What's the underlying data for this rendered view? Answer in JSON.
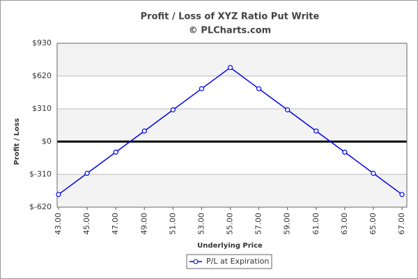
{
  "chart_data": {
    "type": "line",
    "title": "Profit / Loss of XYZ Ratio Put Write",
    "subtitle": "© PLCharts.com",
    "x_label": "Underlying Price",
    "y_label": "Profit / Loss",
    "x": [
      43,
      45,
      47,
      49,
      51,
      53,
      55,
      57,
      59,
      61,
      63,
      65,
      67
    ],
    "series": [
      {
        "name": "P/L at Expiration",
        "color": "#0000ee",
        "values": [
          -500,
          -300,
          -100,
          100,
          300,
          500,
          700,
          500,
          300,
          100,
          -100,
          -300,
          -500
        ]
      }
    ],
    "xlim": [
      43,
      67
    ],
    "xticks": [
      {
        "value": 43,
        "label": "43.00"
      },
      {
        "value": 45,
        "label": "45.00"
      },
      {
        "value": 47,
        "label": "47.00"
      },
      {
        "value": 49,
        "label": "49.00"
      },
      {
        "value": 51,
        "label": "51.00"
      },
      {
        "value": 53,
        "label": "53.00"
      },
      {
        "value": 55,
        "label": "55.00"
      },
      {
        "value": 57,
        "label": "57.00"
      },
      {
        "value": 59,
        "label": "59.00"
      },
      {
        "value": 61,
        "label": "61.00"
      },
      {
        "value": 63,
        "label": "63.00"
      },
      {
        "value": 65,
        "label": "65.00"
      },
      {
        "value": 67,
        "label": "67.00"
      }
    ],
    "ylim": [
      -620,
      930
    ],
    "yticks": [
      {
        "value": -620,
        "label": "$-620"
      },
      {
        "value": -310,
        "label": "$-310"
      },
      {
        "value": 0,
        "label": "$0"
      },
      {
        "value": 310,
        "label": "$310"
      },
      {
        "value": 620,
        "label": "$620"
      },
      {
        "value": 930,
        "label": "$930"
      }
    ],
    "grid": true,
    "zero_line": true,
    "legend": "bottom"
  }
}
